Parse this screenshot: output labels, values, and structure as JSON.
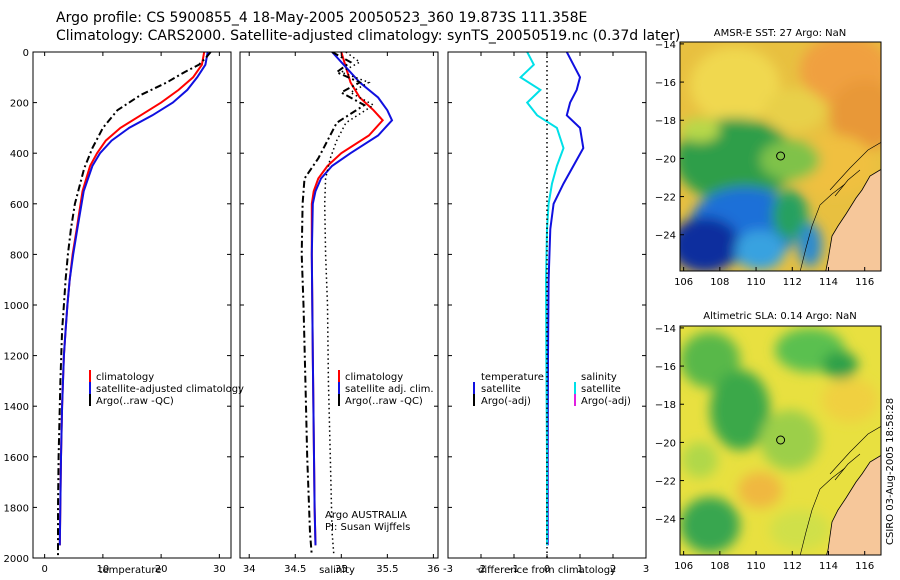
{
  "header": {
    "title": "Argo profile: CS 5900855_4 18-May-2005 20050523_360 19.873S 111.358E",
    "subtitle": "Climatology: CARS2000. Satellite-adjusted climatology: synTS_20050519.nc (0.37d later)"
  },
  "credit": "CSIRO 03-Aug-2005 18:58:28",
  "colors": {
    "climatology": "#ff0000",
    "satellite": "#1010e0",
    "argo": "#000000",
    "salinity_diff": "#00e0e8",
    "argo_adj_salinity": "#e020e0",
    "land": "#f6c79a"
  },
  "chart_data": [
    {
      "type": "line",
      "xlabel": "temperature",
      "ylabel": "",
      "xlim": [
        -2,
        32
      ],
      "ylim": [
        2000,
        0
      ],
      "xticks": [
        0,
        10,
        20,
        30
      ],
      "yticks": [
        0,
        200,
        400,
        600,
        800,
        1000,
        1200,
        1400,
        1600,
        1800,
        2000
      ],
      "legend": [
        "climatology",
        "satellite-adjusted climatology",
        "Argo(..raw -QC)"
      ],
      "series": [
        {
          "name": "climatology",
          "color": "#ff0000",
          "dash": "",
          "x": [
            27.4,
            27.0,
            25.5,
            23.0,
            20.0,
            16.5,
            13.0,
            10.5,
            9.0,
            7.8,
            6.5,
            5.5,
            4.8,
            4.3,
            3.9,
            3.6,
            3.3,
            3.0,
            2.8,
            2.6
          ],
          "y": [
            0,
            50,
            100,
            150,
            200,
            250,
            300,
            350,
            400,
            450,
            550,
            700,
            800,
            900,
            1000,
            1100,
            1200,
            1400,
            1600,
            1950
          ]
        },
        {
          "name": "satellite-adjusted climatology",
          "color": "#1010e0",
          "dash": "",
          "x": [
            28.0,
            27.6,
            26.2,
            24.5,
            22.0,
            18.5,
            14.5,
            11.5,
            9.5,
            8.2,
            6.7,
            5.6,
            4.9,
            4.3,
            3.9,
            3.6,
            3.3,
            3.0,
            2.8,
            2.6
          ],
          "y": [
            0,
            50,
            100,
            150,
            200,
            250,
            300,
            350,
            400,
            450,
            550,
            700,
            800,
            900,
            1000,
            1100,
            1200,
            1400,
            1600,
            1950
          ]
        },
        {
          "name": "Argo(..raw -QC)",
          "color": "#000000",
          "dash": "7,3,2,3",
          "x": [
            28.5,
            27.8,
            26.5,
            24.0,
            21.0,
            16.5,
            12.5,
            10.0,
            8.2,
            6.8,
            5.2,
            4.5,
            4.0,
            3.6,
            3.3,
            3.0,
            2.7,
            2.4,
            2.3,
            2.3
          ],
          "y": [
            0,
            20,
            50,
            80,
            120,
            170,
            230,
            300,
            380,
            460,
            600,
            700,
            800,
            900,
            1000,
            1100,
            1300,
            1600,
            1800,
            1990
          ]
        }
      ]
    },
    {
      "type": "line",
      "xlabel": "salinity",
      "ylabel": "",
      "xlim": [
        33.9,
        36.05
      ],
      "ylim": [
        2000,
        0
      ],
      "xticks": [
        34,
        34.5,
        35,
        35.5,
        36
      ],
      "yticks": [
        0,
        200,
        400,
        600,
        800,
        1000,
        1200,
        1400,
        1600,
        1800,
        2000
      ],
      "legend": [
        "climatology",
        "satellite adj. clim.",
        "Argo(..raw -QC)"
      ],
      "annotations": [
        "Argo AUSTRALIA",
        "PI: Susan Wijffels"
      ],
      "series": [
        {
          "name": "climatology",
          "color": "#ff0000",
          "dash": "",
          "x": [
            35.0,
            35.05,
            35.1,
            35.2,
            35.35,
            35.45,
            35.3,
            35.0,
            34.85,
            34.75,
            34.7,
            34.68,
            34.68,
            34.69,
            34.7,
            34.71,
            34.72
          ],
          "y": [
            0,
            60,
            120,
            180,
            230,
            270,
            330,
            400,
            450,
            500,
            550,
            600,
            800,
            1200,
            1500,
            1800,
            1950
          ]
        },
        {
          "name": "satellite adj. clim.",
          "color": "#1010e0",
          "dash": "",
          "x": [
            34.9,
            35.05,
            35.2,
            35.4,
            35.5,
            35.55,
            35.4,
            35.1,
            34.9,
            34.78,
            34.72,
            34.69,
            34.68,
            34.69,
            34.7,
            34.71,
            34.72
          ],
          "y": [
            0,
            60,
            120,
            180,
            230,
            270,
            330,
            400,
            450,
            500,
            550,
            600,
            800,
            1200,
            1500,
            1800,
            1950
          ]
        },
        {
          "name": "Argo(..raw -QC)",
          "color": "#000000",
          "dash": "7,3,2,3",
          "x": [
            34.9,
            35.1,
            34.95,
            35.2,
            35.0,
            35.25,
            34.95,
            34.85,
            34.75,
            34.6,
            34.58,
            34.57,
            34.59,
            34.61,
            34.63,
            34.66,
            34.68
          ],
          "y": [
            0,
            40,
            80,
            120,
            160,
            210,
            280,
            350,
            420,
            500,
            600,
            800,
            1000,
            1300,
            1600,
            1900,
            1990
          ]
        },
        {
          "name": "",
          "color": "#000000",
          "dash": "1.5,3",
          "x": [
            35.05,
            35.2,
            35.0,
            35.3,
            35.1,
            35.35,
            35.05,
            34.95,
            34.88,
            34.83,
            34.82,
            34.83,
            34.85,
            34.86,
            34.88,
            34.9,
            34.92
          ],
          "y": [
            0,
            40,
            80,
            120,
            160,
            210,
            280,
            350,
            420,
            500,
            600,
            800,
            1000,
            1300,
            1600,
            1900,
            1990
          ]
        }
      ]
    },
    {
      "type": "line",
      "xlabel": "difference from climatology",
      "ylabel": "",
      "xlim": [
        -3,
        3
      ],
      "ylim": [
        2000,
        0
      ],
      "xticks": [
        -3,
        -2,
        -1,
        0,
        1,
        2,
        3
      ],
      "yticks": [
        0,
        200,
        400,
        600,
        800,
        1000,
        1200,
        1400,
        1600,
        1800,
        2000
      ],
      "legend_left": [
        "temperature",
        "satellite",
        "Argo(-adj)"
      ],
      "legend_right": [
        "salinity",
        "satellite",
        "Argo(-adj)"
      ],
      "series": [
        {
          "name": "temperature satellite",
          "color": "#1010e0",
          "dash": "",
          "x": [
            0.6,
            0.8,
            1.0,
            0.9,
            0.7,
            0.6,
            1.0,
            1.1,
            0.8,
            0.5,
            0.2,
            0.1,
            0.05,
            0.03,
            0.02,
            0.02
          ],
          "y": [
            0,
            50,
            100,
            150,
            200,
            250,
            300,
            380,
            450,
            520,
            600,
            700,
            900,
            1200,
            1600,
            1950
          ]
        },
        {
          "name": "salinity satellite",
          "color": "#00e0e8",
          "dash": "",
          "x": [
            -0.6,
            -0.4,
            -0.8,
            -0.2,
            -0.6,
            -0.3,
            0.3,
            0.5,
            0.3,
            0.15,
            0.05,
            0.0,
            -0.03,
            -0.02,
            0.0,
            0.0
          ],
          "y": [
            0,
            50,
            100,
            150,
            200,
            250,
            300,
            380,
            450,
            520,
            600,
            700,
            900,
            1200,
            1600,
            1950
          ]
        },
        {
          "name": "",
          "color": "#000000",
          "dash": "1.5,3",
          "x": [
            0.0,
            0.0
          ],
          "y": [
            0,
            2000
          ]
        }
      ]
    },
    {
      "type": "heatmap",
      "title": "AMSR-E SST: 27 Argo: NaN",
      "xlim": [
        105.8,
        116.9
      ],
      "ylim": [
        -25.9,
        -13.9
      ],
      "xticks": [
        106,
        108,
        110,
        112,
        114,
        116
      ],
      "yticks": [
        -14,
        -16,
        -18,
        -20,
        -22,
        -24
      ],
      "marker": {
        "lon": 111.358,
        "lat": -19.873
      }
    },
    {
      "type": "heatmap",
      "title": "Altimetric SLA: 0.14 Argo: NaN",
      "xlim": [
        105.8,
        116.9
      ],
      "ylim": [
        -25.9,
        -13.9
      ],
      "xticks": [
        106,
        108,
        110,
        112,
        114,
        116
      ],
      "yticks": [
        -14,
        -16,
        -18,
        -20,
        -22,
        -24
      ],
      "marker": {
        "lon": 111.358,
        "lat": -19.873
      }
    }
  ]
}
